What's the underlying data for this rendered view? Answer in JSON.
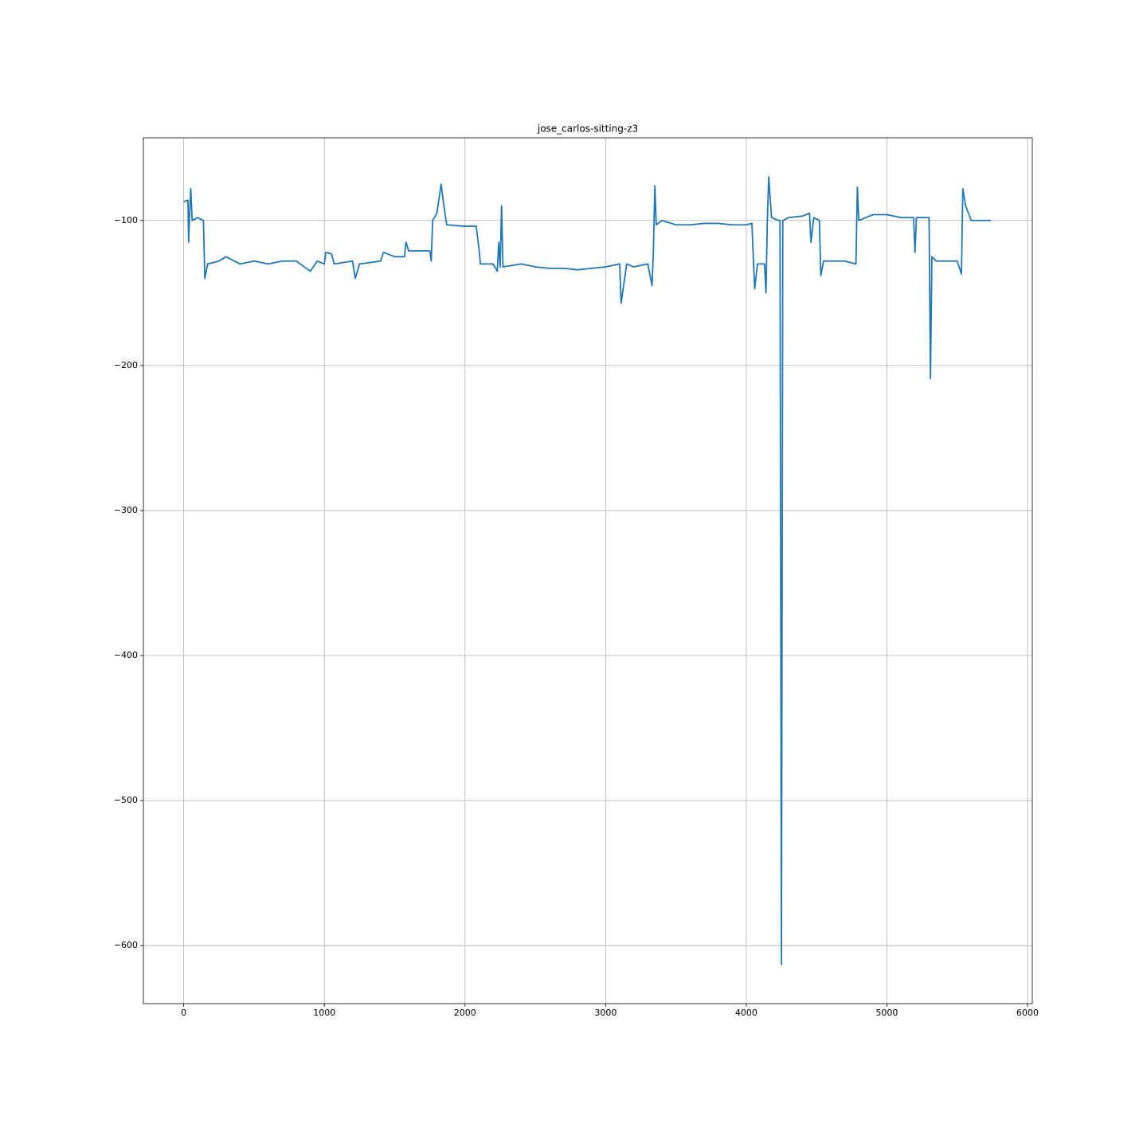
{
  "chart_data": {
    "type": "line",
    "title": "jose_carlos-sitting-z3",
    "series": [
      {
        "color": "#1f77b4",
        "x": [
          0,
          30,
          35,
          40,
          50,
          60,
          100,
          140,
          150,
          170,
          250,
          300,
          400,
          500,
          600,
          700,
          800,
          900,
          950,
          1000,
          1010,
          1050,
          1070,
          1200,
          1220,
          1250,
          1400,
          1420,
          1500,
          1570,
          1580,
          1600,
          1750,
          1760,
          1770,
          1800,
          1830,
          1850,
          1870,
          2000,
          2080,
          2100,
          2110,
          2200,
          2230,
          2240,
          2250,
          2260,
          2270,
          2400,
          2500,
          2600,
          2700,
          2800,
          2900,
          3000,
          3100,
          3110,
          3150,
          3200,
          3300,
          3330,
          3340,
          3350,
          3360,
          3400,
          3500,
          3600,
          3700,
          3800,
          3900,
          4000,
          4040,
          4050,
          4060,
          4080,
          4130,
          4140,
          4150,
          4160,
          4180,
          4230,
          4240,
          4250,
          4260,
          4300,
          4400,
          4450,
          4460,
          4480,
          4520,
          4530,
          4550,
          4700,
          4780,
          4790,
          4800,
          4900,
          5000,
          5100,
          5190,
          5200,
          5210,
          5300,
          5310,
          5320,
          5350,
          5500,
          5530,
          5540,
          5560,
          5600,
          5700,
          5740
        ],
        "values": [
          -87,
          -86,
          -115,
          -100,
          -78,
          -100,
          -98,
          -100,
          -140,
          -130,
          -128,
          -125,
          -130,
          -128,
          -130,
          -128,
          -128,
          -135,
          -128,
          -130,
          -122,
          -123,
          -130,
          -128,
          -140,
          -130,
          -128,
          -122,
          -125,
          -125,
          -115,
          -121,
          -121,
          -128,
          -100,
          -95,
          -75,
          -90,
          -103,
          -104,
          -104,
          -120,
          -130,
          -130,
          -135,
          -115,
          -132,
          -90,
          -132,
          -130,
          -132,
          -133,
          -133,
          -134,
          -133,
          -132,
          -130,
          -157,
          -130,
          -132,
          -130,
          -145,
          -120,
          -76,
          -103,
          -100,
          -103,
          -103,
          -102,
          -102,
          -103,
          -103,
          -102,
          -125,
          -147,
          -130,
          -130,
          -150,
          -100,
          -70,
          -98,
          -100,
          -100,
          -613,
          -100,
          -98,
          -97,
          -95,
          -115,
          -98,
          -100,
          -138,
          -128,
          -128,
          -130,
          -77,
          -100,
          -96,
          -96,
          -98,
          -98,
          -122,
          -98,
          -98,
          -209,
          -125,
          -128,
          -128,
          -137,
          -78,
          -90,
          -100,
          -100,
          -100
        ]
      }
    ],
    "xlim": [
      -287,
      6034
    ],
    "ylim": [
      -640,
      -43
    ],
    "xticks": [
      0,
      1000,
      2000,
      3000,
      4000,
      5000,
      6000
    ],
    "yticks": [
      {
        "value": -600,
        "label": "−600"
      },
      {
        "value": -500,
        "label": "−500"
      },
      {
        "value": -400,
        "label": "−400"
      },
      {
        "value": -300,
        "label": "−300"
      },
      {
        "value": -200,
        "label": "−200"
      },
      {
        "value": -100,
        "label": "−100"
      }
    ],
    "grid": true
  }
}
